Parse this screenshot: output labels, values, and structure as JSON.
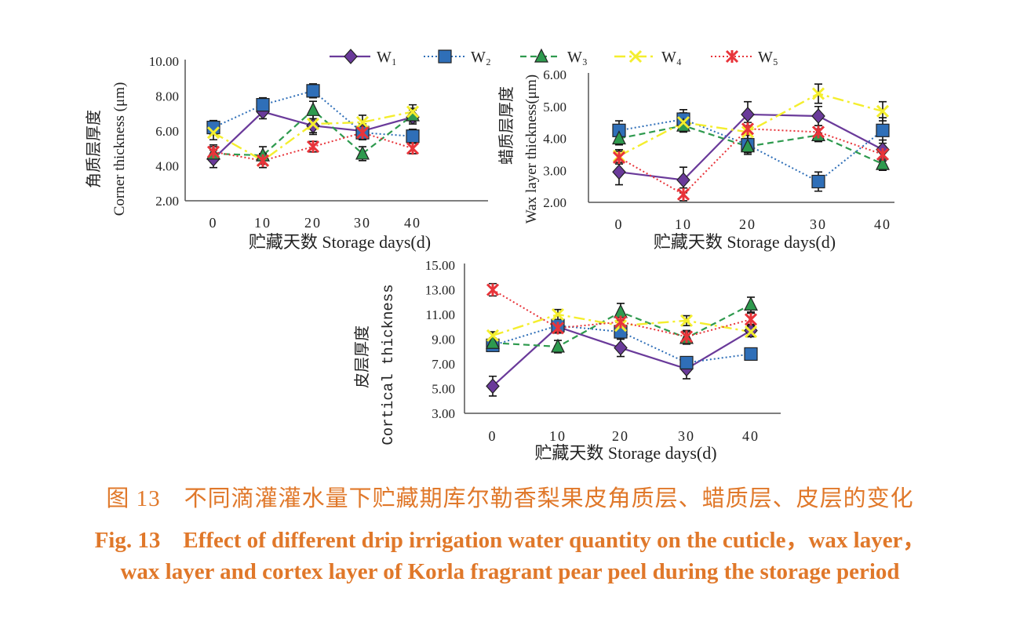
{
  "legend": [
    "W₁",
    "W₂",
    "W₃",
    "W₄",
    "W₅"
  ],
  "colors": {
    "W1": "#6a3a9a",
    "W2": "#2f6fb8",
    "W3": "#2e9a4e",
    "W4": "#f4ee2e",
    "W5": "#e8343a",
    "axis": "#555555",
    "caption": "#e0782a"
  },
  "chart_data": [
    {
      "type": "line",
      "ylabel_cn": "角质层厚度",
      "ylabel_en": "Corner thickness (μm)",
      "xlabel": "贮藏天数 Storage days(d)",
      "categories": [
        "0",
        "10",
        "20",
        "30",
        "40"
      ],
      "ylim": [
        2,
        10
      ],
      "yticks": [
        "2.00",
        "4.00",
        "6.00",
        "8.00",
        "10.00"
      ],
      "series": [
        {
          "name": "W₁",
          "values": [
            4.4,
            7.1,
            6.3,
            6.0,
            6.8
          ],
          "err": [
            0.5,
            0.4,
            0.4,
            0.4,
            0.4
          ]
        },
        {
          "name": "W₂",
          "values": [
            6.2,
            7.5,
            8.3,
            5.9,
            5.7
          ],
          "err": [
            0.4,
            0.4,
            0.4,
            0.4,
            0.4
          ]
        },
        {
          "name": "W₃",
          "values": [
            4.7,
            4.6,
            7.2,
            4.7,
            6.9
          ],
          "err": [
            0.4,
            0.5,
            0.5,
            0.4,
            0.4
          ]
        },
        {
          "name": "W₄",
          "values": [
            5.9,
            4.3,
            6.4,
            6.5,
            7.1
          ],
          "err": [
            0.4,
            0.4,
            0.6,
            0.4,
            0.4
          ]
        },
        {
          "name": "W₅",
          "values": [
            4.8,
            4.3,
            5.1,
            5.9,
            5.0
          ],
          "err": [
            0.4,
            0.4,
            0.3,
            0.4,
            0.3
          ]
        }
      ]
    },
    {
      "type": "line",
      "ylabel_cn": "蜡质层厚度",
      "ylabel_en": "Wax layer thickness(μm)",
      "xlabel": "贮藏天数 Storage days(d)",
      "categories": [
        "0",
        "10",
        "20",
        "30",
        "40"
      ],
      "ylim": [
        2,
        6
      ],
      "yticks": [
        "2.00",
        "3.00",
        "4.00",
        "5.00",
        "6.00"
      ],
      "series": [
        {
          "name": "W₁",
          "values": [
            2.95,
            2.7,
            4.75,
            4.7,
            3.65
          ],
          "err": [
            0.4,
            0.4,
            0.4,
            0.3,
            0.3
          ]
        },
        {
          "name": "W₂",
          "values": [
            4.25,
            4.6,
            3.8,
            2.65,
            4.25
          ],
          "err": [
            0.3,
            0.3,
            0.3,
            0.3,
            0.4
          ]
        },
        {
          "name": "W₃",
          "values": [
            4.0,
            4.4,
            3.75,
            4.1,
            3.2
          ],
          "err": [
            0.2,
            0.2,
            0.2,
            0.2,
            0.2
          ]
        },
        {
          "name": "W₄",
          "values": [
            3.45,
            4.5,
            4.2,
            5.4,
            4.85
          ],
          "err": [
            0.2,
            0.3,
            0.2,
            0.3,
            0.3
          ]
        },
        {
          "name": "W₅",
          "values": [
            3.4,
            2.25,
            4.3,
            4.2,
            3.5
          ],
          "err": [
            0.2,
            0.2,
            0.2,
            0.2,
            0.2
          ]
        }
      ]
    },
    {
      "type": "line",
      "ylabel_cn": "皮层厚度",
      "ylabel_en": "Cortical thickness",
      "xlabel": "贮藏天数 Storage days(d)",
      "categories": [
        "0",
        "10",
        "20",
        "30",
        "40"
      ],
      "ylim": [
        3,
        15
      ],
      "yticks": [
        "3.00",
        "5.00",
        "7.00",
        "9.00",
        "11.00",
        "13.00",
        "15.00"
      ],
      "series": [
        {
          "name": "W₁",
          "values": [
            5.2,
            10.0,
            8.3,
            6.6,
            9.7
          ],
          "err": [
            0.8,
            0.5,
            0.7,
            0.8,
            0.5
          ]
        },
        {
          "name": "W₂",
          "values": [
            8.5,
            10.1,
            9.6,
            7.1,
            7.8
          ],
          "err": [
            0.3,
            0.5,
            0.6,
            0.4,
            0.3
          ]
        },
        {
          "name": "W₃",
          "values": [
            8.7,
            8.4,
            11.2,
            9.1,
            11.8
          ],
          "err": [
            0.4,
            0.5,
            0.7,
            0.5,
            0.6
          ]
        },
        {
          "name": "W₄",
          "values": [
            9.3,
            11.0,
            10.1,
            10.5,
            9.6
          ],
          "err": [
            0.3,
            0.4,
            0.4,
            0.4,
            0.4
          ]
        },
        {
          "name": "W₅",
          "values": [
            13.0,
            9.9,
            10.4,
            9.2,
            10.6
          ],
          "err": [
            0.5,
            0.4,
            0.5,
            0.5,
            0.5
          ]
        }
      ]
    }
  ],
  "caption": {
    "cn": "图 13　不同滴灌灌水量下贮藏期库尔勒香梨果皮角质层、蜡质层、皮层的变化",
    "en_line1": "Fig. 13　Effect of different drip irrigation water quantity on the cuticle，wax layer，",
    "en_line2": "wax layer and cortex layer of Korla fragrant pear peel during the storage period"
  }
}
